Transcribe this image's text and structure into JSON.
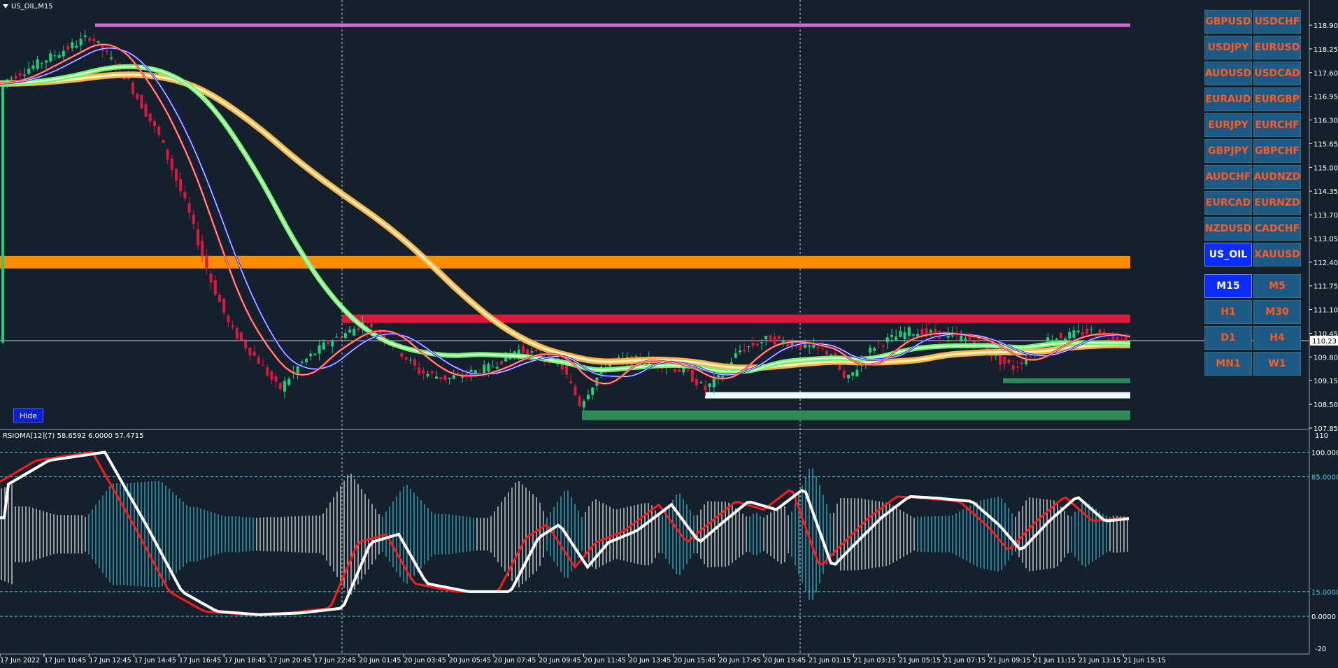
{
  "chart_title": "US_OIL,M15",
  "indicator_label": "RSIOMA[12](7) 58.6592 6.0000 57.4715",
  "hide_label": "Hide",
  "price_axis": [
    "118.90",
    "118.25",
    "117.60",
    "116.95",
    "116.30",
    "115.65",
    "115.00",
    "114.35",
    "113.70",
    "113.05",
    "112.40",
    "111.75",
    "111.10",
    "110.45",
    "109.80",
    "109.15",
    "108.50",
    "107.85"
  ],
  "current_price": "110.23",
  "indicator_axis": {
    "top": "110",
    "levels": [
      "100.0000",
      "85.0000",
      "15.0000",
      "0.0000"
    ],
    "bottom": "-20"
  },
  "time_axis": [
    "17 Jun 2022",
    "17 Jun 10:45",
    "17 Jun 12:45",
    "17 Jun 14:45",
    "17 Jun 16:45",
    "17 Jun 18:45",
    "17 Jun 20:45",
    "17 Jun 22:45",
    "20 Jun 01:45",
    "20 Jun 03:45",
    "20 Jun 05:45",
    "20 Jun 07:45",
    "20 Jun 09:45",
    "20 Jun 11:45",
    "20 Jun 13:45",
    "20 Jun 15:45",
    "20 Jun 17:45",
    "20 Jun 19:45",
    "21 Jun 01:15",
    "21 Jun 03:15",
    "21 Jun 05:15",
    "21 Jun 07:15",
    "21 Jun 09:15",
    "21 Jun 11:15",
    "21 Jun 13:15",
    "21 Jun 15:15"
  ],
  "symbols": [
    [
      "GBPUSD",
      "USDCHF"
    ],
    [
      "USDJPY",
      "EURUSD"
    ],
    [
      "AUDUSD",
      "USDCAD"
    ],
    [
      "EURAUD",
      "EURGBP"
    ],
    [
      "EURJPY",
      "EURCHF"
    ],
    [
      "GBPJPY",
      "GBPCHF"
    ],
    [
      "AUDCHF",
      "AUDNZD"
    ],
    [
      "EURCAD",
      "EURNZD"
    ],
    [
      "NZDUSD",
      "CADCHF"
    ],
    [
      "US_OIL",
      "XAUUSD"
    ]
  ],
  "active_symbol": "US_OIL",
  "timeframes": [
    [
      "M15",
      "M5"
    ],
    [
      "H1",
      "M30"
    ],
    [
      "D1",
      "H4"
    ],
    [
      "MN1",
      "W1"
    ]
  ],
  "active_timeframe": "M15",
  "colors": {
    "background": "#15202d",
    "bull_candle": "#1fd17a",
    "bear_candle": "#e0173c",
    "button_bg": "#1d5a86",
    "button_text": "#ff5a1e",
    "button_active": "#0a2cff"
  },
  "chart_data": {
    "type": "candlestick",
    "price_range": [
      107.85,
      118.9
    ],
    "indicator_range": [
      -20,
      110
    ],
    "levels": [
      {
        "price": 118.9,
        "color": "#d46ad4"
      },
      {
        "price": 112.4,
        "color": "#ff8c00"
      },
      {
        "price": 110.85,
        "color": "#e0173c"
      },
      {
        "price": 109.15,
        "color": "#2e8b57"
      },
      {
        "price": 108.75,
        "color": "#f0f8ff"
      },
      {
        "price": 108.2,
        "color": "#2e8b57"
      }
    ]
  }
}
